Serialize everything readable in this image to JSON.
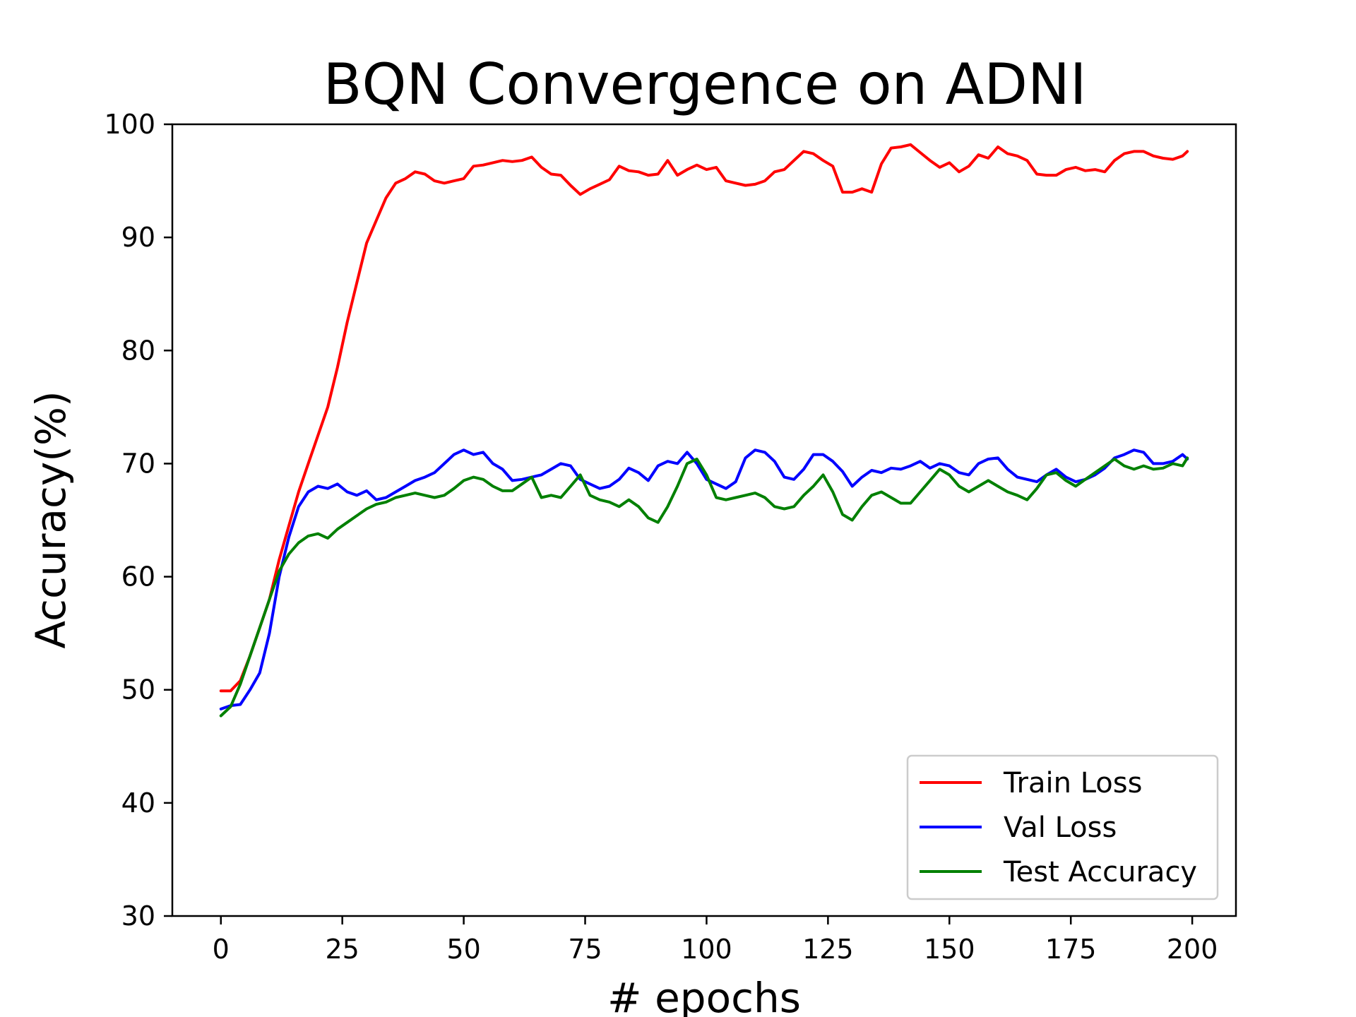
{
  "chart_data": {
    "type": "line",
    "title": "BQN Convergence on ADNI",
    "xlabel": "# epochs",
    "ylabel": "Accuracy(%)",
    "xlim": [
      -10,
      209
    ],
    "ylim": [
      30,
      100
    ],
    "xticks": [
      0,
      25,
      50,
      75,
      100,
      125,
      150,
      175,
      200
    ],
    "yticks": [
      30,
      40,
      50,
      60,
      70,
      80,
      90,
      100
    ],
    "grid": false,
    "legend_position": "lower-right",
    "series": [
      {
        "name": "Train Loss",
        "color": "#ff0000",
        "x": [
          0,
          2,
          4,
          6,
          8,
          10,
          12,
          14,
          16,
          18,
          20,
          22,
          24,
          26,
          28,
          30,
          32,
          34,
          36,
          38,
          40,
          42,
          44,
          46,
          48,
          50,
          52,
          54,
          56,
          58,
          60,
          62,
          64,
          66,
          68,
          70,
          72,
          74,
          76,
          78,
          80,
          82,
          84,
          86,
          88,
          90,
          92,
          94,
          96,
          98,
          100,
          102,
          104,
          106,
          108,
          110,
          112,
          114,
          116,
          118,
          120,
          122,
          124,
          126,
          128,
          130,
          132,
          134,
          136,
          138,
          140,
          142,
          144,
          146,
          148,
          150,
          152,
          154,
          156,
          158,
          160,
          162,
          164,
          166,
          168,
          170,
          172,
          174,
          176,
          178,
          180,
          182,
          184,
          186,
          188,
          190,
          192,
          194,
          196,
          198,
          199
        ],
        "y": [
          49.9,
          49.9,
          50.8,
          53.0,
          55.5,
          58.0,
          61.5,
          64.5,
          67.5,
          70.0,
          72.5,
          75.0,
          78.5,
          82.5,
          86.0,
          89.5,
          91.5,
          93.5,
          94.8,
          95.2,
          95.8,
          95.6,
          95.0,
          94.8,
          95.0,
          95.2,
          96.3,
          96.4,
          96.6,
          96.8,
          96.7,
          96.8,
          97.1,
          96.2,
          95.6,
          95.5,
          94.6,
          93.8,
          94.3,
          94.7,
          95.1,
          96.3,
          95.9,
          95.8,
          95.5,
          95.6,
          96.8,
          95.5,
          96.0,
          96.4,
          96.0,
          96.2,
          95.0,
          94.8,
          94.6,
          94.7,
          95.0,
          95.8,
          96.0,
          96.8,
          97.6,
          97.4,
          96.8,
          96.3,
          94.0,
          94.0,
          94.3,
          94.0,
          96.5,
          97.9,
          98.0,
          98.2,
          97.5,
          96.8,
          96.2,
          96.6,
          95.8,
          96.3,
          97.3,
          97.0,
          98.0,
          97.4,
          97.2,
          96.8,
          95.6,
          95.5,
          95.5,
          96.0,
          96.2,
          95.9,
          96.0,
          95.8,
          96.8,
          97.4,
          97.6,
          97.6,
          97.2,
          97.0,
          96.9,
          97.2,
          97.6
        ]
      },
      {
        "name": "Val Loss",
        "color": "#0000ff",
        "x": [
          0,
          2,
          4,
          6,
          8,
          10,
          12,
          14,
          16,
          18,
          20,
          22,
          24,
          26,
          28,
          30,
          32,
          34,
          36,
          38,
          40,
          42,
          44,
          46,
          48,
          50,
          52,
          54,
          56,
          58,
          60,
          62,
          64,
          66,
          68,
          70,
          72,
          74,
          76,
          78,
          80,
          82,
          84,
          86,
          88,
          90,
          92,
          94,
          96,
          98,
          100,
          102,
          104,
          106,
          108,
          110,
          112,
          114,
          116,
          118,
          120,
          122,
          124,
          126,
          128,
          130,
          132,
          134,
          136,
          138,
          140,
          142,
          144,
          146,
          148,
          150,
          152,
          154,
          156,
          158,
          160,
          162,
          164,
          166,
          168,
          170,
          172,
          174,
          176,
          178,
          180,
          182,
          184,
          186,
          188,
          190,
          192,
          194,
          196,
          198,
          199
        ],
        "y": [
          48.3,
          48.6,
          48.7,
          50.0,
          51.5,
          55.0,
          60.0,
          63.5,
          66.2,
          67.5,
          68.0,
          67.8,
          68.2,
          67.5,
          67.2,
          67.6,
          66.8,
          67.0,
          67.5,
          68.0,
          68.5,
          68.8,
          69.2,
          70.0,
          70.8,
          71.2,
          70.8,
          71.0,
          70.0,
          69.5,
          68.5,
          68.6,
          68.8,
          69.0,
          69.5,
          70.0,
          69.8,
          68.6,
          68.2,
          67.8,
          68.0,
          68.6,
          69.6,
          69.2,
          68.5,
          69.8,
          70.2,
          70.0,
          71.0,
          70.0,
          68.6,
          68.2,
          67.8,
          68.4,
          70.5,
          71.2,
          71.0,
          70.2,
          68.8,
          68.6,
          69.5,
          70.8,
          70.8,
          70.2,
          69.3,
          68.0,
          68.8,
          69.4,
          69.2,
          69.6,
          69.5,
          69.8,
          70.2,
          69.6,
          70.0,
          69.8,
          69.2,
          69.0,
          70.0,
          70.4,
          70.5,
          69.5,
          68.8,
          68.6,
          68.4,
          69.0,
          69.5,
          68.8,
          68.4,
          68.6,
          69.0,
          69.6,
          70.5,
          70.8,
          71.2,
          71.0,
          70.0,
          70.0,
          70.2,
          70.8,
          70.4
        ]
      },
      {
        "name": "Test Accuracy",
        "color": "#008000",
        "x": [
          0,
          2,
          4,
          6,
          8,
          10,
          12,
          14,
          16,
          18,
          20,
          22,
          24,
          26,
          28,
          30,
          32,
          34,
          36,
          38,
          40,
          42,
          44,
          46,
          48,
          50,
          52,
          54,
          56,
          58,
          60,
          62,
          64,
          66,
          68,
          70,
          72,
          74,
          76,
          78,
          80,
          82,
          84,
          86,
          88,
          90,
          92,
          94,
          96,
          98,
          100,
          102,
          104,
          106,
          108,
          110,
          112,
          114,
          116,
          118,
          120,
          122,
          124,
          126,
          128,
          130,
          132,
          134,
          136,
          138,
          140,
          142,
          144,
          146,
          148,
          150,
          152,
          154,
          156,
          158,
          160,
          162,
          164,
          166,
          168,
          170,
          172,
          174,
          176,
          178,
          180,
          182,
          184,
          186,
          188,
          190,
          192,
          194,
          196,
          198,
          199
        ],
        "y": [
          47.7,
          48.5,
          50.5,
          53.0,
          55.5,
          58.0,
          60.5,
          62.0,
          63.0,
          63.6,
          63.8,
          63.4,
          64.2,
          64.8,
          65.4,
          66.0,
          66.4,
          66.6,
          67.0,
          67.2,
          67.4,
          67.2,
          67.0,
          67.2,
          67.8,
          68.5,
          68.8,
          68.6,
          68.0,
          67.6,
          67.6,
          68.2,
          68.8,
          67.0,
          67.2,
          67.0,
          68.0,
          69.0,
          67.2,
          66.8,
          66.6,
          66.2,
          66.8,
          66.2,
          65.2,
          64.8,
          66.2,
          68.0,
          70.0,
          70.4,
          69.0,
          67.0,
          66.8,
          67.0,
          67.2,
          67.4,
          67.0,
          66.2,
          66.0,
          66.2,
          67.2,
          68.0,
          69.0,
          67.5,
          65.5,
          65.0,
          66.2,
          67.2,
          67.5,
          67.0,
          66.5,
          66.5,
          67.5,
          68.5,
          69.5,
          69.0,
          68.0,
          67.5,
          68.0,
          68.5,
          68.0,
          67.5,
          67.2,
          66.8,
          67.8,
          69.0,
          69.2,
          68.5,
          68.0,
          68.6,
          69.2,
          69.8,
          70.4,
          69.8,
          69.5,
          69.8,
          69.5,
          69.6,
          70.0,
          69.8,
          70.5
        ]
      }
    ]
  }
}
